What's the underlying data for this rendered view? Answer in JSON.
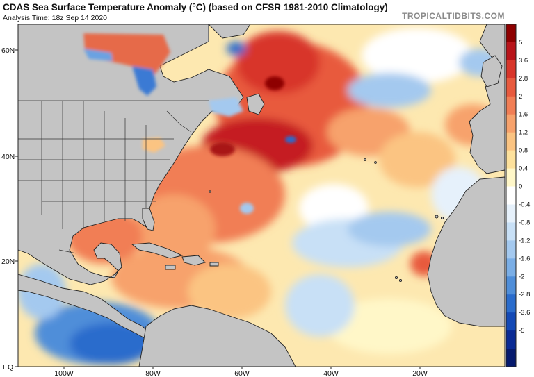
{
  "header": {
    "title": "CDAS Sea Surface Temperature Anomaly (°C) (based on CFSR 1981-2010 Climatology)",
    "subtitle": "Analysis Time: 18z Sep 14 2020",
    "brand": "TROPICALTIDBITS.COM"
  },
  "axes": {
    "lat_labels": [
      {
        "text": "60N",
        "value": 60
      },
      {
        "text": "40N",
        "value": 40
      },
      {
        "text": "20N",
        "value": 20
      },
      {
        "text": "EQ",
        "value": 0
      }
    ],
    "lon_labels": [
      {
        "text": "100W",
        "value": -100
      },
      {
        "text": "80W",
        "value": -80
      },
      {
        "text": "60W",
        "value": -60
      },
      {
        "text": "40W",
        "value": -40
      },
      {
        "text": "20W",
        "value": -20
      }
    ]
  },
  "colorbar": {
    "labels": [
      "5",
      "3.6",
      "2.8",
      "2",
      "1.6",
      "1.2",
      "0.8",
      "0.4",
      "0",
      "-0.4",
      "-0.8",
      "-1.2",
      "-1.6",
      "-2",
      "-2.8",
      "-3.6",
      "-5"
    ],
    "colors": [
      "#8e0000",
      "#b8141a",
      "#d8352a",
      "#e85a3e",
      "#f17e55",
      "#f7a26c",
      "#fbc482",
      "#fde19c",
      "#fff7c8",
      "#ffffff",
      "#e6f1fb",
      "#c8e0f6",
      "#a4c9ef",
      "#7aaee6",
      "#4f8ed9",
      "#2a6ccc",
      "#1349b6",
      "#0a2a94",
      "#061a6e"
    ],
    "ticks_note": ""
  },
  "map": {
    "land_color": "#c4c4c4",
    "ocean_base_color": "#fde8b0",
    "border_color": "#222222"
  }
}
